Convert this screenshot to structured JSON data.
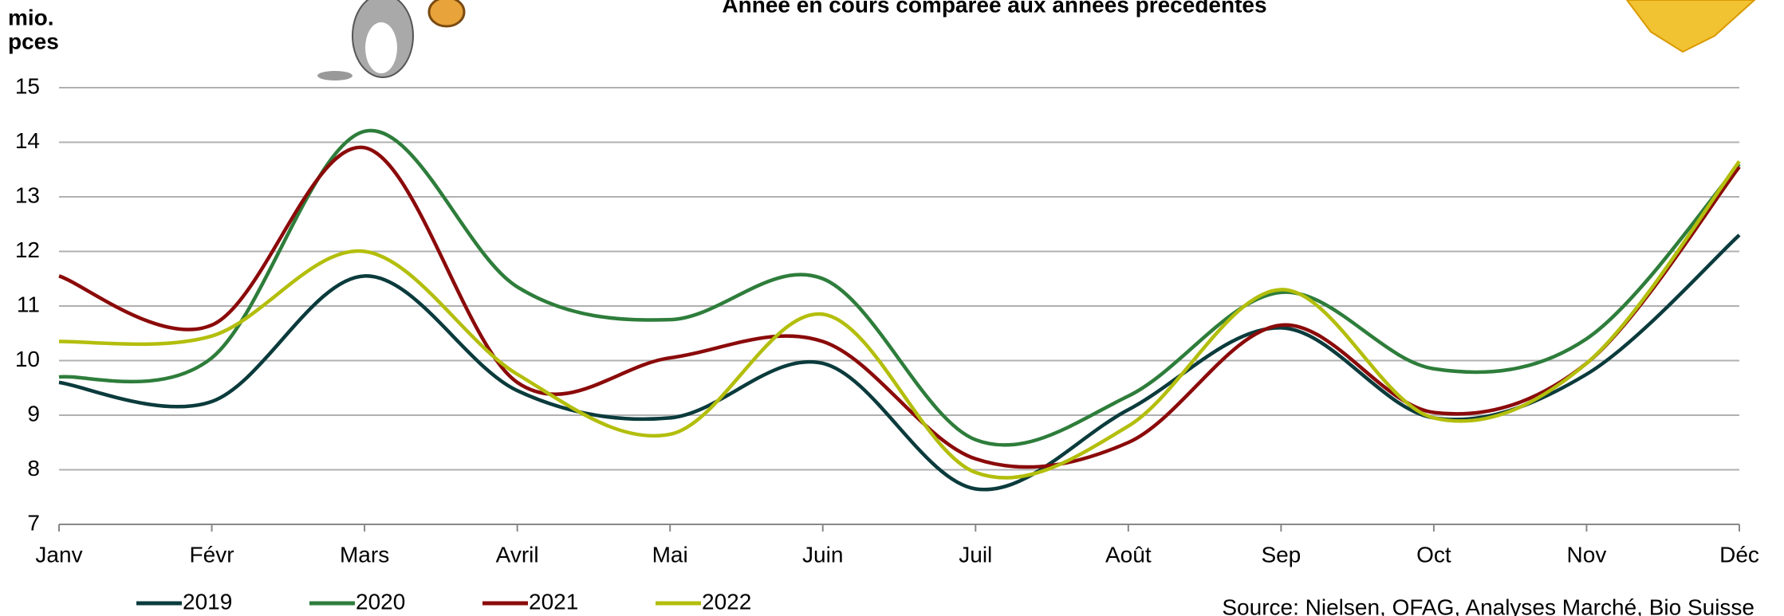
{
  "chart_data": {
    "type": "line",
    "title": "Année en cours comparée aux années précédentes",
    "ylabel": [
      "mio.",
      "pces"
    ],
    "source": "Source: Nielsen, OFAG, Analyses Marché, Bio Suisse",
    "categories": [
      "Janv",
      "Févr",
      "Mars",
      "Avril",
      "Mai",
      "Juin",
      "Juil",
      "Août",
      "Sep",
      "Oct",
      "Nov",
      "Déc"
    ],
    "series": [
      {
        "name": "2019",
        "color": "#0b3b3c",
        "values": [
          9.6,
          9.25,
          11.55,
          9.45,
          8.95,
          9.95,
          7.65,
          9.1,
          10.6,
          8.95,
          9.75,
          12.3
        ]
      },
      {
        "name": "2020",
        "color": "#2e7d3b",
        "values": [
          9.7,
          10.05,
          14.2,
          11.35,
          10.75,
          11.5,
          8.55,
          9.35,
          11.25,
          9.85,
          10.4,
          13.6
        ]
      },
      {
        "name": "2021",
        "color": "#8b0a0a",
        "values": [
          11.55,
          10.65,
          13.9,
          9.6,
          10.05,
          10.35,
          8.2,
          8.5,
          10.65,
          9.05,
          9.95,
          13.55
        ]
      },
      {
        "name": "2022",
        "color": "#b3be0c",
        "values": [
          10.35,
          10.45,
          12.0,
          9.75,
          8.65,
          10.85,
          7.95,
          8.8,
          11.3,
          8.95,
          9.95,
          13.65
        ]
      }
    ],
    "ylim": [
      7,
      15
    ],
    "yticks": [
      7,
      8,
      9,
      10,
      11,
      12,
      13,
      14,
      15
    ],
    "grid": true,
    "smooth": true,
    "legend": "bottom"
  }
}
